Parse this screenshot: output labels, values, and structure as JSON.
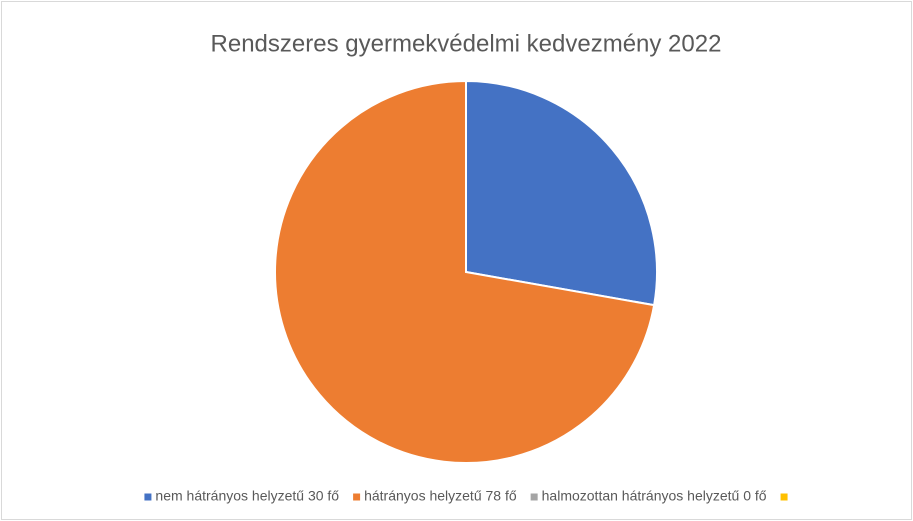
{
  "chart_data": {
    "type": "pie",
    "title": "Rendszeres gyermekvédelmi kedvezmény 2022",
    "categories": [
      "nem hátrányos helyzetű 30 fő",
      "hátrányos helyzetű 78 fő",
      "halmozottan hátrányos helyzetű 0 fő",
      null
    ],
    "values": [
      30,
      78,
      0,
      0
    ],
    "colors": [
      "#4472c4",
      "#ed7d31",
      "#a5a5a5",
      "#ffc000"
    ],
    "legend": "bottom"
  }
}
